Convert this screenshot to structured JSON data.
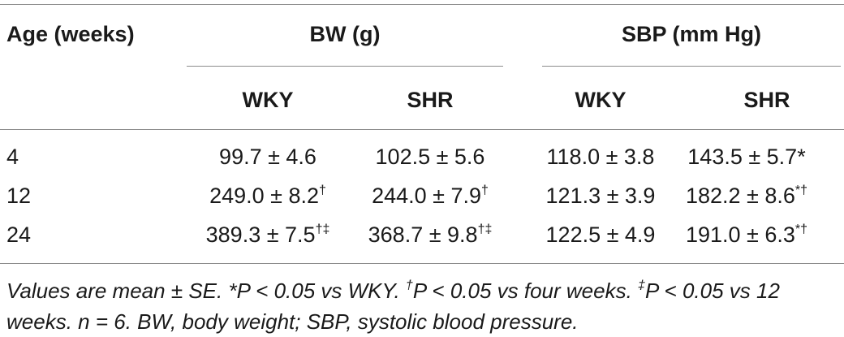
{
  "table": {
    "headers": {
      "age": "Age (weeks)",
      "bw_group": "BW (g)",
      "sbp_group": "SBP (mm Hg)",
      "bw_wky": "WKY",
      "bw_shr": "SHR",
      "sbp_wky": "WKY",
      "sbp_shr": "SHR"
    },
    "rows": [
      {
        "age": "4",
        "bw_wky": "99.7 ± 4.6",
        "bw_wky_sup": "",
        "bw_shr": "102.5 ± 5.6",
        "bw_shr_sup": "",
        "sbp_wky": "118.0 ± 3.8",
        "sbp_wky_sup": "",
        "sbp_shr": "143.5 ± 5.7*",
        "sbp_shr_sup": ""
      },
      {
        "age": "12",
        "bw_wky": "249.0 ± 8.2",
        "bw_wky_sup": "†",
        "bw_shr": "244.0 ± 7.9",
        "bw_shr_sup": "†",
        "sbp_wky": "121.3 ± 3.9",
        "sbp_wky_sup": "",
        "sbp_shr": "182.2 ± 8.6",
        "sbp_shr_sup": "*†"
      },
      {
        "age": "24",
        "bw_wky": "389.3 ± 7.5",
        "bw_wky_sup": "†‡",
        "bw_shr": "368.7 ± 9.8",
        "bw_shr_sup": "†‡",
        "sbp_wky": "122.5 ± 4.9",
        "sbp_wky_sup": "",
        "sbp_shr": "191.0 ± 6.3",
        "sbp_shr_sup": "*†"
      }
    ],
    "footnote": {
      "part1": "Values are mean ± SE. *P < 0.05 vs WKY. ",
      "sym1": "†",
      "part2": "P < 0.05 vs four weeks. ",
      "sym2": "‡",
      "part3": "P < 0.05 vs 12 weeks. n = 6. BW, body weight; SBP, systolic blood pressure."
    }
  }
}
